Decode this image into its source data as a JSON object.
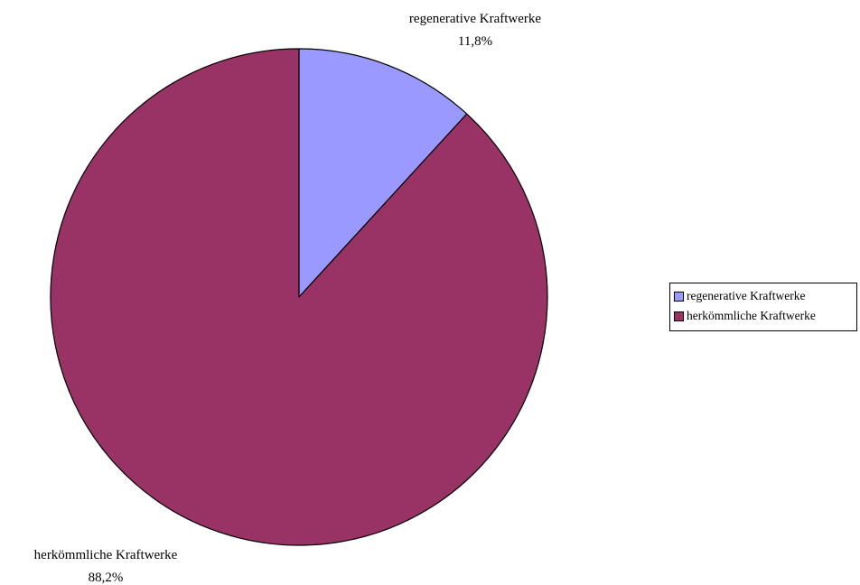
{
  "chart_data": {
    "type": "pie",
    "title": "",
    "slices": [
      {
        "label": "regenerative Kraftwerke",
        "value": 11.8,
        "value_label": "11,8%",
        "color": "#9999FF"
      },
      {
        "label": "herkömmliche Kraftwerke",
        "value": 88.2,
        "value_label": "88,2%",
        "color": "#993366"
      }
    ],
    "start_angle_deg": 90,
    "direction": "clockwise",
    "outline_color": "#000000",
    "legend": {
      "position": "right",
      "entries": [
        "regenerative Kraftwerke",
        "herkömmliche Kraftwerke"
      ]
    }
  }
}
